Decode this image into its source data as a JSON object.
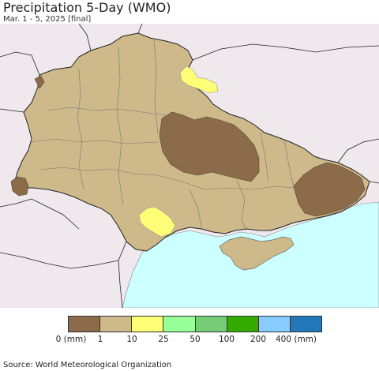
{
  "title": "Precipitation 5-Day (WMO)",
  "subtitle": "Mar. 1 - 5, 2025 [final]",
  "legend": {
    "items": [
      {
        "color": "#8b6b4a"
      },
      {
        "color": "#cdb98a"
      },
      {
        "color": "#ffff77"
      },
      {
        "color": "#99ff99"
      },
      {
        "color": "#77cc77"
      },
      {
        "color": "#33aa00"
      },
      {
        "color": "#88ccff"
      },
      {
        "color": "#2277bb"
      }
    ],
    "labels": [
      "0 (mm)",
      "1",
      "10",
      "25",
      "50",
      "100",
      "200",
      "400 (mm)"
    ]
  },
  "map": {
    "colors": {
      "background": "#efe9ee",
      "sea": "#ccffff",
      "land_low": "#cdb98a",
      "land_zero": "#8b6b4a",
      "land_10": "#ffff77",
      "border": "#222222",
      "oblast": "#777777"
    }
  },
  "source": "Source: World Meteorological Organization"
}
